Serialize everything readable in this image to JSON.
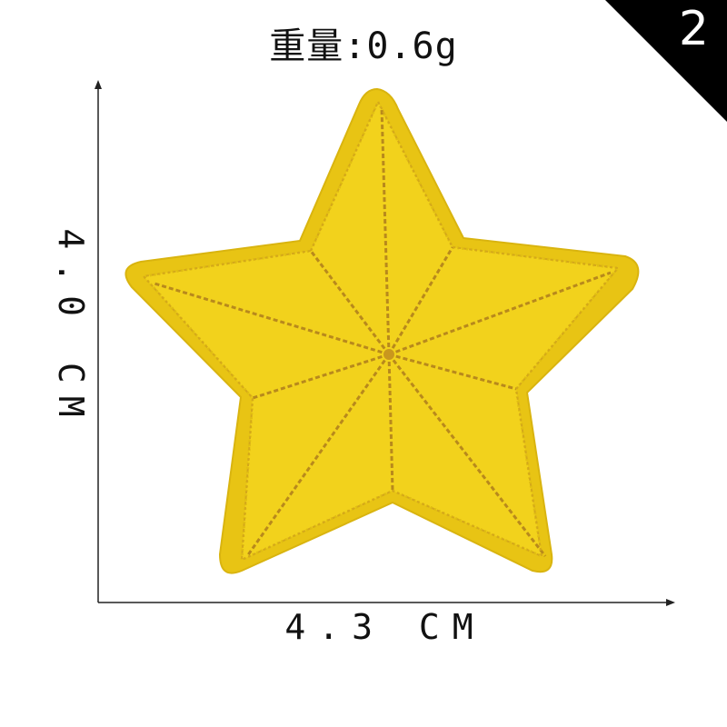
{
  "product": {
    "weight_label": "重量:0.6g",
    "badge_number": "2",
    "height_label": "4.0 CM",
    "width_label": "4.3 CM"
  },
  "patch": {
    "shape": "five-point-star",
    "felt_color": "#f2d21c",
    "border_color": "#e8c414",
    "stitch_color": "#b88a1c"
  }
}
